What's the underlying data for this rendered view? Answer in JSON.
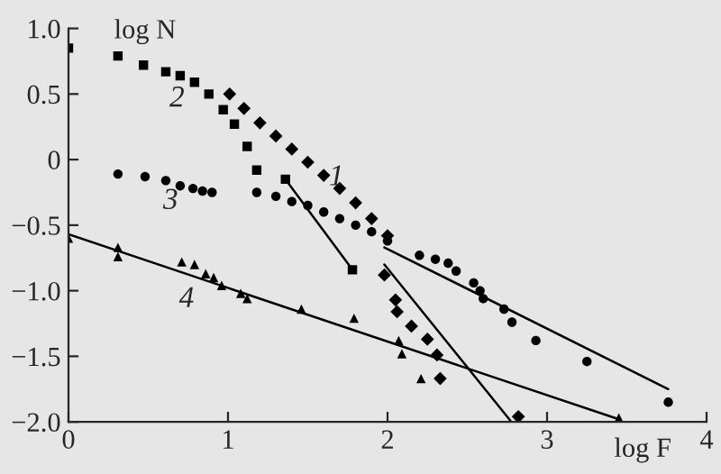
{
  "chart_data": {
    "type": "scatter",
    "xlabel": "log F",
    "ylabel": "log N",
    "xlim": [
      0,
      4
    ],
    "ylim": [
      -2,
      1
    ],
    "xticks": [
      0,
      1,
      2,
      3,
      4
    ],
    "yticks": [
      {
        "value": -2,
        "label": "−2.0"
      },
      {
        "value": -1.5,
        "label": "−1.5"
      },
      {
        "value": -1,
        "label": "−1.0"
      },
      {
        "value": -0.5,
        "label": "−0.5"
      },
      0,
      {
        "value": 0.5,
        "label": "0.5"
      },
      {
        "value": 1,
        "label": "1.0"
      }
    ],
    "grid": false,
    "legend": false,
    "series": [
      {
        "marker": "diamond",
        "color": "#000000",
        "x": [
          1.01,
          1.1,
          1.2,
          1.3,
          1.4,
          1.5,
          1.6,
          1.7,
          1.8,
          1.9,
          2.0,
          1.98,
          2.05,
          2.06,
          2.15,
          2.25,
          2.31,
          2.33,
          2.82
        ],
        "values": [
          0.5,
          0.39,
          0.28,
          0.18,
          0.08,
          -0.02,
          -0.12,
          -0.22,
          -0.33,
          -0.45,
          -0.58,
          -0.88,
          -1.07,
          -1.16,
          -1.27,
          -1.37,
          -1.49,
          -1.67,
          -1.96
        ]
      },
      {
        "marker": "square",
        "color": "#000000",
        "x": [
          0,
          0.31,
          0.47,
          0.61,
          0.7,
          0.79,
          0.88,
          0.97,
          1.04,
          1.12,
          1.18,
          1.36,
          1.78
        ],
        "values": [
          0.85,
          0.79,
          0.72,
          0.67,
          0.64,
          0.59,
          0.5,
          0.38,
          0.27,
          0.1,
          -0.08,
          -0.15,
          -0.84
        ]
      },
      {
        "marker": "circle",
        "color": "#000000",
        "x": [
          0.31,
          0.48,
          0.61,
          0.7,
          0.78,
          0.84,
          0.9,
          1.18,
          1.3,
          1.4,
          1.5,
          1.6,
          1.7,
          1.8,
          1.9,
          2.0,
          2.2,
          2.3,
          2.38,
          2.43,
          2.54,
          2.58,
          2.6,
          2.73,
          2.78,
          2.93,
          3.25,
          3.76
        ],
        "values": [
          -0.11,
          -0.13,
          -0.16,
          -0.2,
          -0.22,
          -0.24,
          -0.25,
          -0.25,
          -0.28,
          -0.32,
          -0.35,
          -0.4,
          -0.45,
          -0.5,
          -0.55,
          -0.62,
          -0.73,
          -0.76,
          -0.79,
          -0.85,
          -0.94,
          -1.0,
          -1.06,
          -1.14,
          -1.24,
          -1.38,
          -1.54,
          -1.85
        ]
      },
      {
        "marker": "triangle",
        "color": "#000000",
        "x": [
          0,
          0.31,
          0.31,
          0.71,
          0.79,
          0.86,
          0.91,
          0.96,
          1.08,
          1.12,
          1.46,
          1.79,
          2.07,
          2.09,
          2.21,
          3.45
        ],
        "values": [
          -0.6,
          -0.67,
          -0.74,
          -0.78,
          -0.8,
          -0.87,
          -0.9,
          -0.96,
          -1.02,
          -1.06,
          -1.14,
          -1.21,
          -1.38,
          -1.48,
          -1.67,
          -1.97
        ]
      },
      {
        "type": "line",
        "color": "#000000",
        "x": [
          1.98,
          2.77
        ],
        "values": [
          -0.8,
          -1.99
        ]
      },
      {
        "type": "line",
        "color": "#000000",
        "x": [
          1.36,
          1.78
        ],
        "values": [
          -0.15,
          -0.84
        ]
      },
      {
        "type": "line",
        "color": "#000000",
        "x": [
          1.98,
          3.76
        ],
        "values": [
          -0.67,
          -1.75
        ]
      },
      {
        "type": "line",
        "color": "#000000",
        "x": [
          0,
          3.45
        ],
        "values": [
          -0.57,
          -1.98
        ]
      }
    ],
    "annotations": [
      "1",
      "2",
      "3",
      "4"
    ]
  }
}
